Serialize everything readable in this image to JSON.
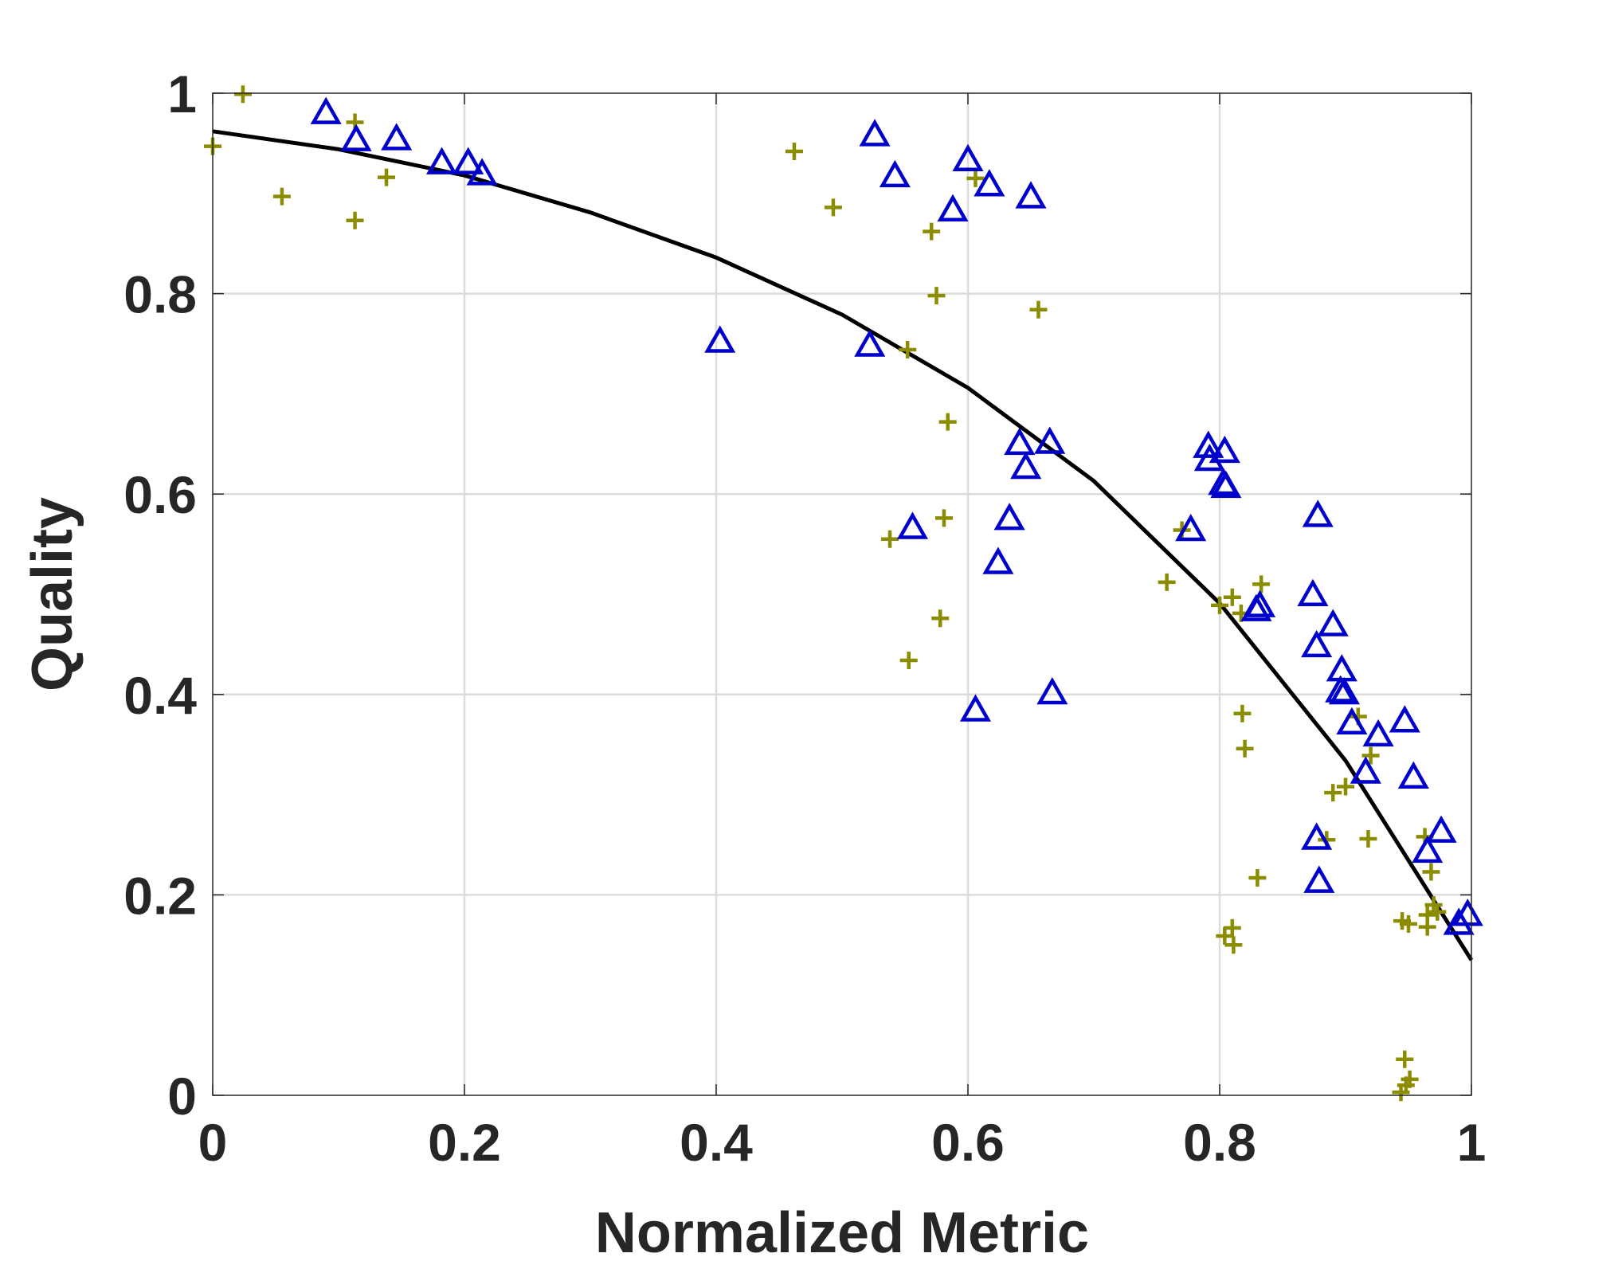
{
  "chart_data": {
    "type": "scatter",
    "title": "",
    "xlabel": "Normalized Metric",
    "ylabel": "Quality",
    "xlim": [
      0,
      1
    ],
    "ylim": [
      0,
      1
    ],
    "grid": true,
    "x_ticks": [
      "0",
      "0.2",
      "0.4",
      "0.6",
      "0.8",
      "1"
    ],
    "y_ticks": [
      "0",
      "0.2",
      "0.4",
      "0.6",
      "0.8",
      "1"
    ],
    "colors": {
      "triangles": "#0000CC",
      "plus": "#8C8C00",
      "fit": "#000000",
      "grid": "#DCDCDC",
      "axis": "#262626"
    },
    "series": [
      {
        "name": "triangles",
        "marker": "triangle",
        "points": [
          [
            0.09,
            0.98
          ],
          [
            0.114,
            0.953
          ],
          [
            0.146,
            0.954
          ],
          [
            0.182,
            0.93
          ],
          [
            0.203,
            0.93
          ],
          [
            0.214,
            0.919
          ],
          [
            0.403,
            0.752
          ],
          [
            0.522,
            0.748
          ],
          [
            0.526,
            0.958
          ],
          [
            0.542,
            0.917
          ],
          [
            0.556,
            0.566
          ],
          [
            0.588,
            0.883
          ],
          [
            0.6,
            0.933
          ],
          [
            0.606,
            0.384
          ],
          [
            0.617,
            0.908
          ],
          [
            0.624,
            0.531
          ],
          [
            0.633,
            0.575
          ],
          [
            0.641,
            0.65
          ],
          [
            0.646,
            0.626
          ],
          [
            0.65,
            0.896
          ],
          [
            0.665,
            0.651
          ],
          [
            0.667,
            0.401
          ],
          [
            0.777,
            0.564
          ],
          [
            0.791,
            0.647
          ],
          [
            0.792,
            0.634
          ],
          [
            0.804,
            0.642
          ],
          [
            0.803,
            0.61
          ],
          [
            0.805,
            0.607
          ],
          [
            0.829,
            0.484
          ],
          [
            0.832,
            0.488
          ],
          [
            0.874,
            0.499
          ],
          [
            0.878,
            0.578
          ],
          [
            0.877,
            0.448
          ],
          [
            0.877,
            0.256
          ],
          [
            0.879,
            0.213
          ],
          [
            0.89,
            0.469
          ],
          [
            0.897,
            0.424
          ],
          [
            0.896,
            0.403
          ],
          [
            0.899,
            0.401
          ],
          [
            0.905,
            0.371
          ],
          [
            0.916,
            0.322
          ],
          [
            0.926,
            0.359
          ],
          [
            0.947,
            0.373
          ],
          [
            0.954,
            0.317
          ],
          [
            0.965,
            0.243
          ],
          [
            0.976,
            0.263
          ],
          [
            0.99,
            0.171
          ],
          [
            0.997,
            0.18
          ]
        ]
      },
      {
        "name": "plus",
        "marker": "plus",
        "points": [
          [
            0.0,
            0.947
          ],
          [
            0.024,
            0.999
          ],
          [
            0.055,
            0.897
          ],
          [
            0.113,
            0.971
          ],
          [
            0.113,
            0.873
          ],
          [
            0.138,
            0.916
          ],
          [
            0.462,
            0.942
          ],
          [
            0.493,
            0.886
          ],
          [
            0.538,
            0.555
          ],
          [
            0.552,
            0.744
          ],
          [
            0.553,
            0.434
          ],
          [
            0.571,
            0.862
          ],
          [
            0.575,
            0.798
          ],
          [
            0.578,
            0.476
          ],
          [
            0.581,
            0.576
          ],
          [
            0.584,
            0.672
          ],
          [
            0.606,
            0.915
          ],
          [
            0.656,
            0.784
          ],
          [
            0.758,
            0.512
          ],
          [
            0.77,
            0.564
          ],
          [
            0.8,
            0.489
          ],
          [
            0.81,
            0.497
          ],
          [
            0.817,
            0.481
          ],
          [
            0.818,
            0.381
          ],
          [
            0.82,
            0.346
          ],
          [
            0.83,
            0.217
          ],
          [
            0.833,
            0.51
          ],
          [
            0.804,
            0.159
          ],
          [
            0.81,
            0.167
          ],
          [
            0.811,
            0.15
          ],
          [
            0.885,
            0.255
          ],
          [
            0.89,
            0.302
          ],
          [
            0.9,
            0.308
          ],
          [
            0.91,
            0.378
          ],
          [
            0.918,
            0.256
          ],
          [
            0.92,
            0.339
          ],
          [
            0.945,
            0.174
          ],
          [
            0.95,
            0.171
          ],
          [
            0.947,
            0.036
          ],
          [
            0.951,
            0.016
          ],
          [
            0.944,
            0.003
          ],
          [
            0.948,
            0.01
          ],
          [
            0.963,
            0.258
          ],
          [
            0.965,
            0.18
          ],
          [
            0.965,
            0.168
          ],
          [
            0.968,
            0.223
          ],
          [
            0.97,
            0.19
          ],
          [
            0.973,
            0.183
          ]
        ]
      },
      {
        "name": "fit",
        "type": "line",
        "x": [
          0,
          0.1,
          0.2,
          0.3,
          0.4,
          0.5,
          0.6,
          0.7,
          0.8,
          0.9,
          1.0
        ],
        "y": [
          0.962,
          0.944,
          0.918,
          0.881,
          0.836,
          0.779,
          0.706,
          0.613,
          0.491,
          0.334,
          0.135
        ]
      }
    ]
  }
}
